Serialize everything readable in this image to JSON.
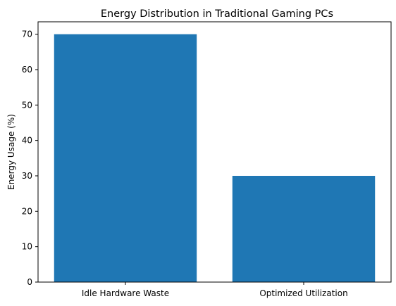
{
  "chart_data": {
    "type": "bar",
    "title": "Energy Distribution in Traditional Gaming PCs",
    "xlabel": "",
    "ylabel": "Energy Usage (%)",
    "categories": [
      "Idle Hardware Waste",
      "Optimized Utilization"
    ],
    "values": [
      70,
      30
    ],
    "ylim": [
      0,
      73.5
    ],
    "yticks": [
      0,
      10,
      20,
      30,
      40,
      50,
      60,
      70
    ],
    "bar_color": "#1f77b4",
    "grid": false,
    "legend": "none"
  }
}
